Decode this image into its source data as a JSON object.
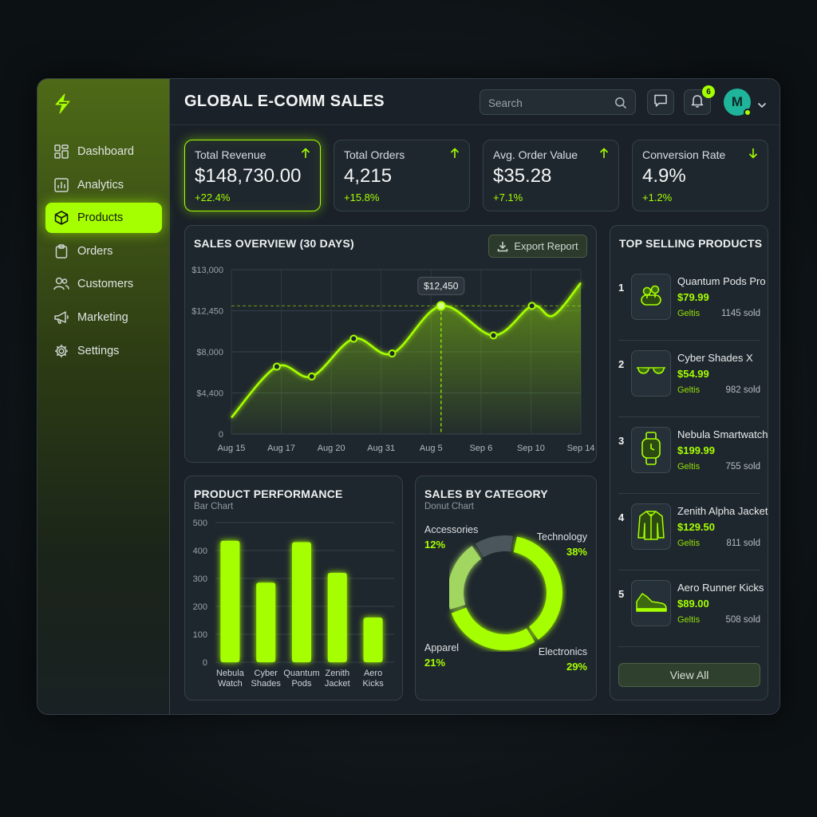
{
  "app": {
    "title": "GLOBAL E-COMM SALES"
  },
  "colors": {
    "accent": "#a6ff00",
    "panel": "#1f272e",
    "avatar": "#1fb59a"
  },
  "sidebar": {
    "items": [
      {
        "label": "Dashboard",
        "icon": "dashboard-icon",
        "active": false
      },
      {
        "label": "Analytics",
        "icon": "analytics-icon",
        "active": false
      },
      {
        "label": "Products",
        "icon": "box-icon",
        "active": true
      },
      {
        "label": "Orders",
        "icon": "clipboard-icon",
        "active": false
      },
      {
        "label": "Customers",
        "icon": "users-icon",
        "active": false
      },
      {
        "label": "Marketing",
        "icon": "megaphone-icon",
        "active": false
      },
      {
        "label": "Settings",
        "icon": "gear-icon",
        "active": false
      }
    ]
  },
  "header": {
    "search_placeholder": "Search",
    "notification_count": "6",
    "avatar_initial": "M"
  },
  "kpis": [
    {
      "label": "Total Revenue",
      "value": "$148,730.00",
      "change": "+22.4%",
      "trend": "up"
    },
    {
      "label": "Total Orders",
      "value": "4,215",
      "change": "+15.8%",
      "trend": "up"
    },
    {
      "label": "Avg. Order Value",
      "value": "$35.28",
      "change": "+7.1%",
      "trend": "up"
    },
    {
      "label": "Conversion Rate",
      "value": "4.9%",
      "change": "+1.2%",
      "trend": "down"
    }
  ],
  "sales_overview": {
    "title": "SALES OVERVIEW (30 DAYS)",
    "export_label": "Export Report",
    "tooltip": "$12,450"
  },
  "top_products": {
    "title": "TOP SELLING PRODUCTS",
    "view_all": "View All",
    "items": [
      {
        "rank": "1",
        "name": "Quantum Pods Pro",
        "price": "$79.99",
        "tag": "Geltis",
        "sold": "1145 sold",
        "icon": "earbuds-icon"
      },
      {
        "rank": "2",
        "name": "Cyber Shades X",
        "price": "$54.99",
        "tag": "Geltis",
        "sold": "982 sold",
        "icon": "sunglasses-icon"
      },
      {
        "rank": "3",
        "name": "Nebula Smartwatch",
        "price": "$199.99",
        "tag": "Geltis",
        "sold": "755 sold",
        "icon": "smartwatch-icon"
      },
      {
        "rank": "4",
        "name": "Zenith Alpha Jacket",
        "price": "$129.50",
        "tag": "Geltis",
        "sold": "811 sold",
        "icon": "jacket-icon"
      },
      {
        "rank": "5",
        "name": "Aero Runner Kicks",
        "price": "$89.00",
        "tag": "Geltis",
        "sold": "508 sold",
        "icon": "sneaker-icon"
      }
    ]
  },
  "product_performance": {
    "title": "PRODUCT PERFORMANCE",
    "subtitle": "Bar Chart"
  },
  "sales_by_category": {
    "title": "SALES BY CATEGORY",
    "subtitle": "Donut Chart"
  },
  "chart_data": [
    {
      "type": "line",
      "x": [
        "Aug 15",
        "Aug 17",
        "Aug 20",
        "Aug 31",
        "Aug 5",
        "Sep 6",
        "Sep 10",
        "Sep 14"
      ],
      "xticks": [
        "Aug 15",
        "Aug 17",
        "Aug 20",
        "Aug 31",
        "Aug 5",
        "Sep 6",
        "Sep 10",
        "Sep 14"
      ],
      "yticks": [
        "$13,000",
        "$12,450",
        "$8,000",
        "$4,400",
        "0"
      ],
      "points": [
        {
          "t": 0.0,
          "v": 0.1
        },
        {
          "t": 0.13,
          "v": 0.41
        },
        {
          "t": 0.23,
          "v": 0.35
        },
        {
          "t": 0.35,
          "v": 0.58
        },
        {
          "t": 0.46,
          "v": 0.49
        },
        {
          "t": 0.6,
          "v": 0.78
        },
        {
          "t": 0.75,
          "v": 0.6
        },
        {
          "t": 0.86,
          "v": 0.78
        },
        {
          "t": 0.92,
          "v": 0.72
        },
        {
          "t": 1.0,
          "v": 0.92
        }
      ],
      "markers": [
        1,
        2,
        3,
        4,
        5,
        6,
        7
      ],
      "highlight_index": 5,
      "highlight_value": "$12,450"
    },
    {
      "type": "bar",
      "categories": [
        "Nebula Watch",
        "Cyber Shades",
        "Quantum Pods",
        "Zenith Jacket",
        "Aero Kicks"
      ],
      "category_lines": [
        [
          "Nebula",
          "Watch"
        ],
        [
          "Cyber",
          "Shades"
        ],
        [
          "Quantum",
          "Pods"
        ],
        [
          "Zenith",
          "Jacket"
        ],
        [
          "Aero",
          "Kicks"
        ]
      ],
      "values": [
        435,
        285,
        430,
        320,
        160
      ],
      "ylim": [
        0,
        500
      ],
      "yticks": [
        0,
        100,
        200,
        300,
        400,
        500
      ]
    },
    {
      "type": "pie",
      "categories": [
        "Technology",
        "Electronics",
        "Apparel",
        "Accessories"
      ],
      "values": [
        38,
        29,
        21,
        12
      ],
      "labels": [
        "38%",
        "29%",
        "21%",
        "12%"
      ]
    }
  ]
}
